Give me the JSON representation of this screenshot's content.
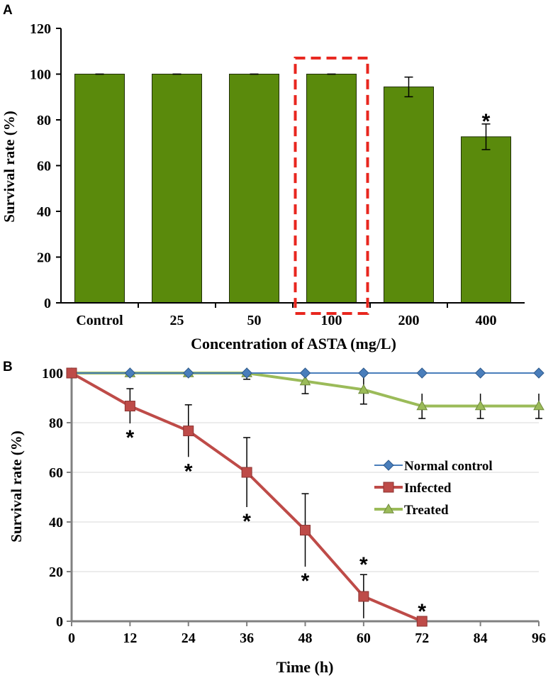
{
  "chart_data": [
    {
      "panel_label": "A",
      "type": "bar",
      "title": "",
      "xlabel": "Concentration of ASTA (mg/L)",
      "ylabel": "Survival rate (%)",
      "ylim": [
        0,
        120
      ],
      "yticks": [
        "0",
        "20",
        "40",
        "60",
        "80",
        "100",
        "120"
      ],
      "categories": [
        "Control",
        "25",
        "50",
        "100",
        "200",
        "400"
      ],
      "values": [
        100,
        100,
        100,
        100,
        94.4,
        72.6
      ],
      "errors": [
        0,
        0,
        0,
        0,
        4.3,
        5.6
      ],
      "significance": [
        "",
        "",
        "",
        "",
        "",
        "*"
      ],
      "highlighted_category": "100",
      "colors": {
        "bar": "#5a8a0c",
        "bar_edge": "#1f2e06",
        "highlight": "#e8261e",
        "axis": "#000000"
      }
    },
    {
      "panel_label": "B",
      "type": "line",
      "title": "",
      "xlabel": "Time (h)",
      "ylabel": "Survival rate (%)",
      "ylim": [
        0,
        100
      ],
      "xlim": [
        0,
        96
      ],
      "xticks": [
        "0",
        "12",
        "24",
        "36",
        "48",
        "60",
        "72",
        "84",
        "96"
      ],
      "yticks": [
        "0",
        "20",
        "40",
        "60",
        "80",
        "100"
      ],
      "x": [
        0,
        12,
        24,
        36,
        48,
        60,
        72,
        84,
        96
      ],
      "legend_position": "center-right",
      "series": [
        {
          "name": "Normal control",
          "marker": "diamond",
          "color": "#4a7ebb",
          "values": [
            100,
            100,
            100,
            100,
            100,
            100,
            100,
            100,
            100
          ],
          "errors": [
            0,
            0,
            0,
            0,
            0,
            0,
            0,
            0,
            0
          ]
        },
        {
          "name": "Infected",
          "marker": "square",
          "color": "#be4b48",
          "values": [
            100,
            86.7,
            76.7,
            60,
            36.7,
            10,
            0,
            null,
            null
          ],
          "errors": [
            0,
            7,
            10.5,
            14,
            14.7,
            8.8,
            0,
            null,
            null
          ],
          "significance": [
            "",
            "*",
            "*",
            "*",
            "*",
            "*",
            "*",
            "",
            ""
          ]
        },
        {
          "name": "Treated",
          "marker": "triangle",
          "color": "#9bbb59",
          "values": [
            100,
            100,
            100,
            100,
            96.7,
            93.3,
            86.7,
            86.7,
            86.7
          ],
          "errors": [
            0,
            0,
            0,
            2.5,
            5,
            5.8,
            5,
            5,
            5
          ]
        }
      ]
    }
  ]
}
